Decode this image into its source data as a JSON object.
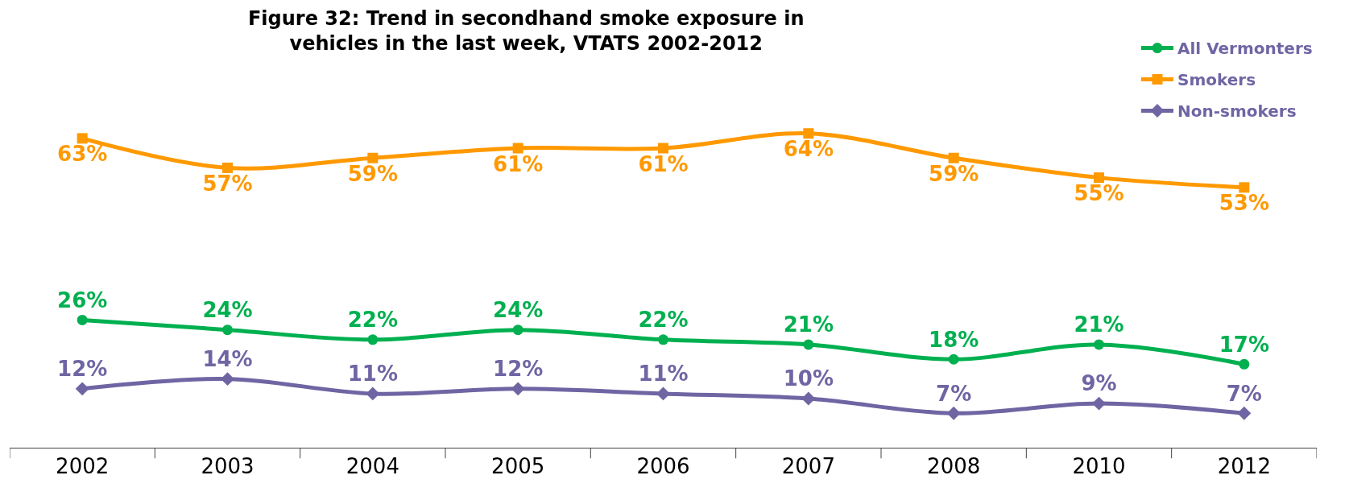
{
  "chart_data": {
    "type": "line",
    "title": "Figure 32: Trend in secondhand smoke exposure in\nvehicles in the last week, VTATS 2002-2012",
    "categories": [
      "2002",
      "2003",
      "2004",
      "2005",
      "2006",
      "2007",
      "2008",
      "2010",
      "2012"
    ],
    "series": [
      {
        "name": "All Vermonters",
        "color": "#00b050",
        "marker": "circle",
        "values": [
          26,
          24,
          22,
          24,
          22,
          21,
          18,
          21,
          17
        ],
        "value_labels": [
          "26%",
          "24%",
          "22%",
          "24%",
          "22%",
          "21%",
          "18%",
          "21%",
          "17%"
        ]
      },
      {
        "name": "Smokers",
        "color": "#ff9900",
        "marker": "square",
        "values": [
          63,
          57,
          59,
          61,
          61,
          64,
          59,
          55,
          53
        ],
        "value_labels": [
          "63%",
          "57%",
          "59%",
          "61%",
          "61%",
          "64%",
          "59%",
          "55%",
          "53%"
        ]
      },
      {
        "name": "Non-smokers",
        "color": "#7065a3",
        "marker": "diamond",
        "values": [
          12,
          14,
          11,
          12,
          11,
          10,
          7,
          9,
          7
        ],
        "value_labels": [
          "12%",
          "14%",
          "11%",
          "12%",
          "11%",
          "10%",
          "7%",
          "9%",
          "7%"
        ]
      }
    ],
    "legend": "top right"
  }
}
